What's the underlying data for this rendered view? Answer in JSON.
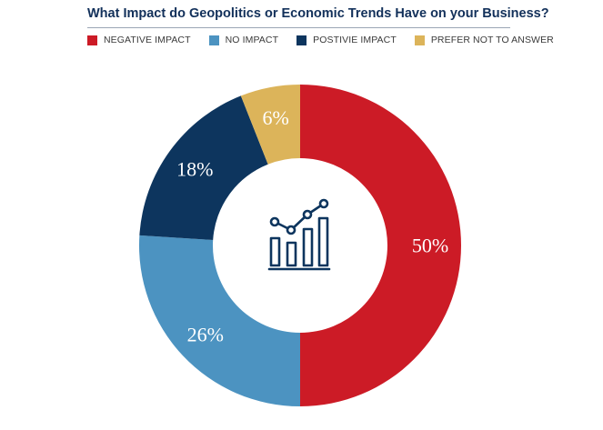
{
  "chart_data": {
    "type": "pie",
    "title": "What Impact do Geopolitics or Economic Trends Have on your Business?",
    "categories": [
      "NEGATIVE IMPACT",
      "NO IMPACT",
      "POSTIVIE IMPACT",
      "PREFER NOT TO ANSWER"
    ],
    "values": [
      50,
      26,
      18,
      6
    ],
    "labels": [
      "50%",
      "26%",
      "18%",
      "6%"
    ],
    "colors": [
      "#cc1b26",
      "#4c93c1",
      "#0d355e",
      "#dcb45a"
    ],
    "label_colors": [
      "#ffffff",
      "#ffffff",
      "#ffffff",
      "#ffffff"
    ],
    "legend_position": "top",
    "donut": true,
    "center_icon": "bar-chart-trend-icon"
  }
}
